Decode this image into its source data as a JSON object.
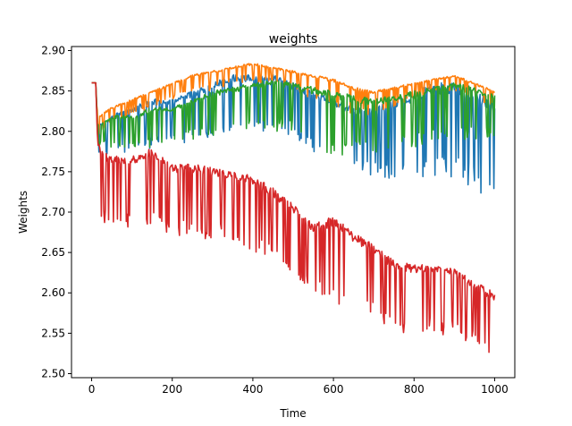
{
  "chart_data": {
    "type": "line",
    "title": "weights",
    "xlabel": "Time",
    "ylabel": "Weights",
    "xlim": [
      -50,
      1050
    ],
    "ylim": [
      2.495,
      2.905
    ],
    "xticks": [
      0,
      200,
      400,
      600,
      800,
      1000
    ],
    "xtick_labels": [
      "0",
      "200",
      "400",
      "600",
      "800",
      "1000"
    ],
    "yticks": [
      2.5,
      2.55,
      2.6,
      2.65,
      2.7,
      2.75,
      2.8,
      2.85,
      2.9
    ],
    "ytick_labels": [
      "2.50",
      "2.55",
      "2.60",
      "2.65",
      "2.70",
      "2.75",
      "2.80",
      "2.85",
      "2.90"
    ],
    "grid": false,
    "legend": false,
    "series": [
      {
        "color": "#1f77b4",
        "x": [
          0,
          10,
          15,
          20,
          50,
          100,
          150,
          200,
          250,
          300,
          350,
          400,
          450,
          500,
          550,
          600,
          650,
          700,
          750,
          800,
          850,
          900,
          950,
          1000
        ],
        "upper": [
          2.86,
          2.86,
          2.8,
          2.81,
          2.82,
          2.83,
          2.84,
          2.84,
          2.85,
          2.86,
          2.87,
          2.87,
          2.87,
          2.86,
          2.85,
          2.84,
          2.83,
          2.83,
          2.84,
          2.85,
          2.86,
          2.86,
          2.85,
          2.84
        ],
        "lower": [
          2.86,
          2.86,
          2.77,
          2.77,
          2.77,
          2.77,
          2.78,
          2.78,
          2.79,
          2.79,
          2.8,
          2.8,
          2.8,
          2.79,
          2.77,
          2.76,
          2.75,
          2.74,
          2.74,
          2.74,
          2.74,
          2.74,
          2.73,
          2.71
        ]
      },
      {
        "color": "#ff7f0e",
        "x": [
          0,
          10,
          15,
          20,
          50,
          100,
          150,
          200,
          250,
          300,
          350,
          400,
          450,
          500,
          550,
          600,
          650,
          700,
          750,
          800,
          850,
          900,
          950,
          1000
        ],
        "upper": [
          2.86,
          2.86,
          2.82,
          2.82,
          2.83,
          2.84,
          2.85,
          2.86,
          2.87,
          2.875,
          2.88,
          2.885,
          2.88,
          2.875,
          2.87,
          2.865,
          2.855,
          2.85,
          2.855,
          2.86,
          2.865,
          2.87,
          2.86,
          2.85
        ],
        "lower": [
          2.86,
          2.86,
          2.79,
          2.8,
          2.81,
          2.82,
          2.83,
          2.84,
          2.85,
          2.85,
          2.86,
          2.86,
          2.86,
          2.85,
          2.84,
          2.83,
          2.82,
          2.82,
          2.83,
          2.84,
          2.85,
          2.85,
          2.84,
          2.83
        ]
      },
      {
        "color": "#2ca02c",
        "x": [
          0,
          10,
          15,
          20,
          50,
          100,
          150,
          200,
          250,
          300,
          350,
          400,
          450,
          500,
          550,
          600,
          650,
          700,
          750,
          800,
          850,
          900,
          950,
          1000
        ],
        "upper": [
          2.86,
          2.86,
          2.81,
          2.81,
          2.82,
          2.82,
          2.83,
          2.83,
          2.84,
          2.85,
          2.855,
          2.86,
          2.865,
          2.86,
          2.855,
          2.85,
          2.845,
          2.84,
          2.845,
          2.85,
          2.855,
          2.86,
          2.855,
          2.845
        ],
        "lower": [
          2.86,
          2.86,
          2.78,
          2.78,
          2.78,
          2.78,
          2.78,
          2.79,
          2.79,
          2.79,
          2.8,
          2.8,
          2.8,
          2.8,
          2.78,
          2.77,
          2.77,
          2.77,
          2.78,
          2.78,
          2.79,
          2.79,
          2.79,
          2.79
        ]
      },
      {
        "color": "#d62728",
        "x": [
          0,
          10,
          15,
          20,
          50,
          100,
          150,
          200,
          250,
          300,
          350,
          400,
          450,
          500,
          550,
          600,
          650,
          700,
          750,
          800,
          850,
          900,
          950,
          1000
        ],
        "upper": [
          2.86,
          2.86,
          2.79,
          2.78,
          2.77,
          2.77,
          2.78,
          2.76,
          2.76,
          2.755,
          2.75,
          2.745,
          2.73,
          2.71,
          2.685,
          2.695,
          2.675,
          2.66,
          2.64,
          2.635,
          2.635,
          2.63,
          2.615,
          2.6
        ],
        "lower": [
          2.86,
          2.86,
          2.7,
          2.69,
          2.68,
          2.68,
          2.68,
          2.67,
          2.665,
          2.665,
          2.66,
          2.65,
          2.635,
          2.62,
          2.6,
          2.585,
          2.575,
          2.565,
          2.55,
          2.55,
          2.55,
          2.545,
          2.535,
          2.51
        ]
      }
    ]
  }
}
